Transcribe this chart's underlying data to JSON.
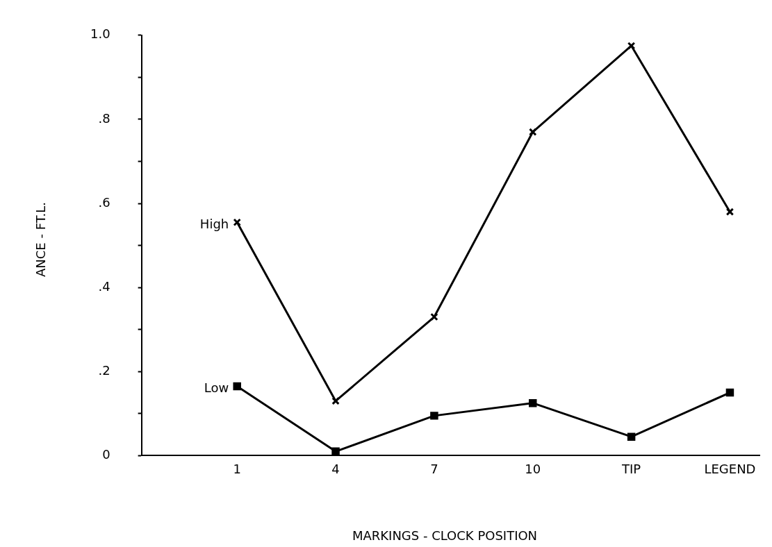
{
  "chart_data": {
    "type": "line",
    "xlabel": "MARKINGS - CLOCK POSITION",
    "ylabel": "ANCE - FT.L.",
    "categories": [
      "1",
      "4",
      "7",
      "10",
      "TIP",
      "LEGEND"
    ],
    "series": [
      {
        "color": "#000000",
        "marker": "cross",
        "values": [
          0.555,
          0.13,
          0.33,
          0.77,
          0.975,
          0.58
        ]
      },
      {
        "color": "#000000",
        "marker": "square",
        "values": [
          0.165,
          0.01,
          0.095,
          0.125,
          0.045,
          0.15
        ]
      }
    ],
    "annotations": [
      {
        "text": "High",
        "x": "1",
        "y": 0.555
      },
      {
        "text": "Low",
        "x": "1",
        "y": 0.165
      }
    ],
    "ylim": [
      0,
      1.0
    ],
    "yticks": [
      0,
      {
        "value": 0.1,
        "label": null
      },
      {
        "value": 0.2,
        "label": ".2"
      },
      {
        "value": 0.3,
        "label": null
      },
      {
        "value": 0.4,
        "label": ".4"
      },
      {
        "value": 0.5,
        "label": null
      },
      {
        "value": 0.6,
        "label": ".6"
      },
      {
        "value": 0.7,
        "label": null
      },
      {
        "value": 0.8,
        "label": ".8"
      },
      {
        "value": 0.9,
        "label": null
      },
      {
        "value": 1.0,
        "label": "1.0"
      }
    ],
    "grid": false,
    "legend": false,
    "line_style": "solid"
  }
}
